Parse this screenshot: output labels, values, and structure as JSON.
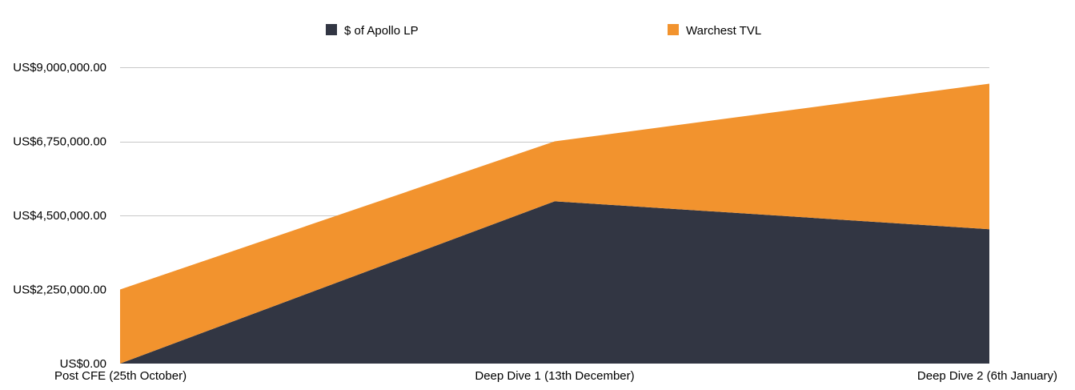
{
  "chart_data": {
    "type": "area",
    "stacked": true,
    "categories": [
      "Post CFE (25th October)",
      "Deep Dive 1 (13th December)",
      "Deep Dive 2 (6th January)"
    ],
    "series": [
      {
        "name": "$ of Apollo LP",
        "values": [
          0,
          4930000,
          4080000
        ],
        "color": "#323643"
      },
      {
        "name": "Warchest TVL",
        "values": [
          2250000,
          1820000,
          4420000
        ],
        "color": "#f2932e"
      }
    ],
    "ylim": [
      0,
      9000000
    ],
    "yticks": [
      0,
      2250000,
      4500000,
      6750000,
      9000000
    ],
    "ytick_labels": [
      "US$0.00",
      "US$2,250,000.00",
      "US$4,500,000.00",
      "US$6,750,000.00",
      "US$9,000,000.00"
    ],
    "grid": true,
    "legend_position": "top"
  }
}
